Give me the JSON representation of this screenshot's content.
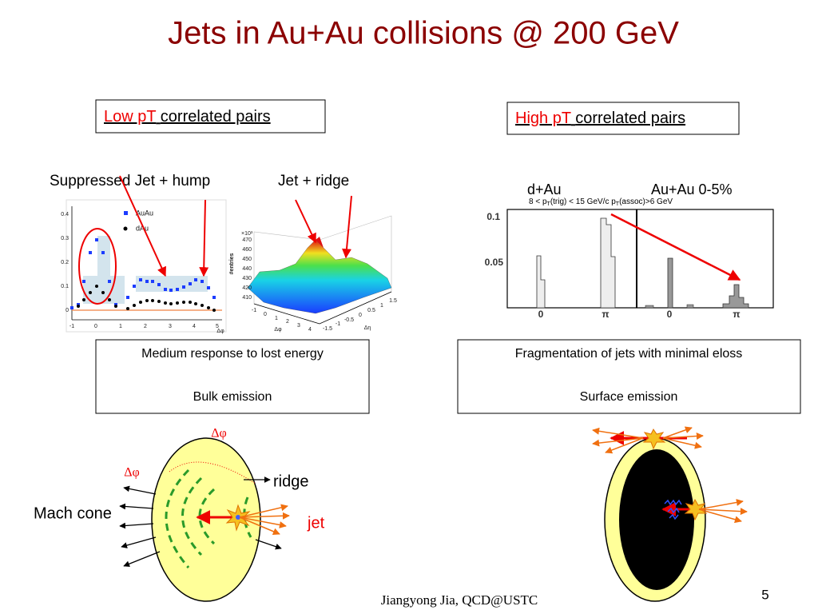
{
  "title": "Jets in Au+Au collisions @ 200 GeV",
  "left": {
    "heading": {
      "highlight": "Low pT",
      "rest": "correlated pairs"
    },
    "labels": [
      "Suppressed Jet + hump",
      "Jet + ridge"
    ],
    "box": [
      "Medium response to lost energy",
      "Bulk emission"
    ],
    "plot1": {
      "legend": [
        "AuAu",
        "dAu"
      ],
      "yticks": [
        "0.4",
        "0.3",
        "0.2",
        "0.1",
        "0"
      ],
      "xticks": [
        "-1",
        "0",
        "1",
        "2",
        "3",
        "4",
        "5"
      ],
      "xlabel": "Δφ"
    },
    "plot2": {
      "ylabel": "#entries",
      "scale": "×10³",
      "zticks": [
        "470",
        "460",
        "450",
        "440",
        "430",
        "420",
        "410"
      ],
      "phiticks": [
        "-1",
        "0",
        "1",
        "2",
        "3",
        "4"
      ],
      "etaticks": [
        "-1.5",
        "-1",
        "-0.5",
        "0",
        "0.5",
        "1",
        "1.5"
      ],
      "xlabel": "Δφ",
      "ylabel2": "Δη"
    }
  },
  "right": {
    "heading": {
      "highlight": "High pT",
      "rest": "correlated pairs"
    },
    "labels": [
      "d+Au",
      "Au+Au 0-5%"
    ],
    "cut": [
      "8 < p",
      "T",
      "(trig) < 15 GeV/c  p",
      "T",
      "(assoc)>6 GeV"
    ],
    "yticks": [
      "0.1",
      "0.05"
    ],
    "xticks": [
      "0",
      "π",
      "0",
      "π"
    ],
    "box": [
      "Fragmentation of jets with minimal eloss",
      "Surface emission"
    ]
  },
  "diagram": {
    "dphi_top": "Δφ",
    "dphi_left": "Δφ",
    "ridge": "ridge",
    "mach": "Mach cone",
    "jet": "jet"
  },
  "footer": "Jiangyong Jia,  QCD@USTC",
  "page": "5"
}
